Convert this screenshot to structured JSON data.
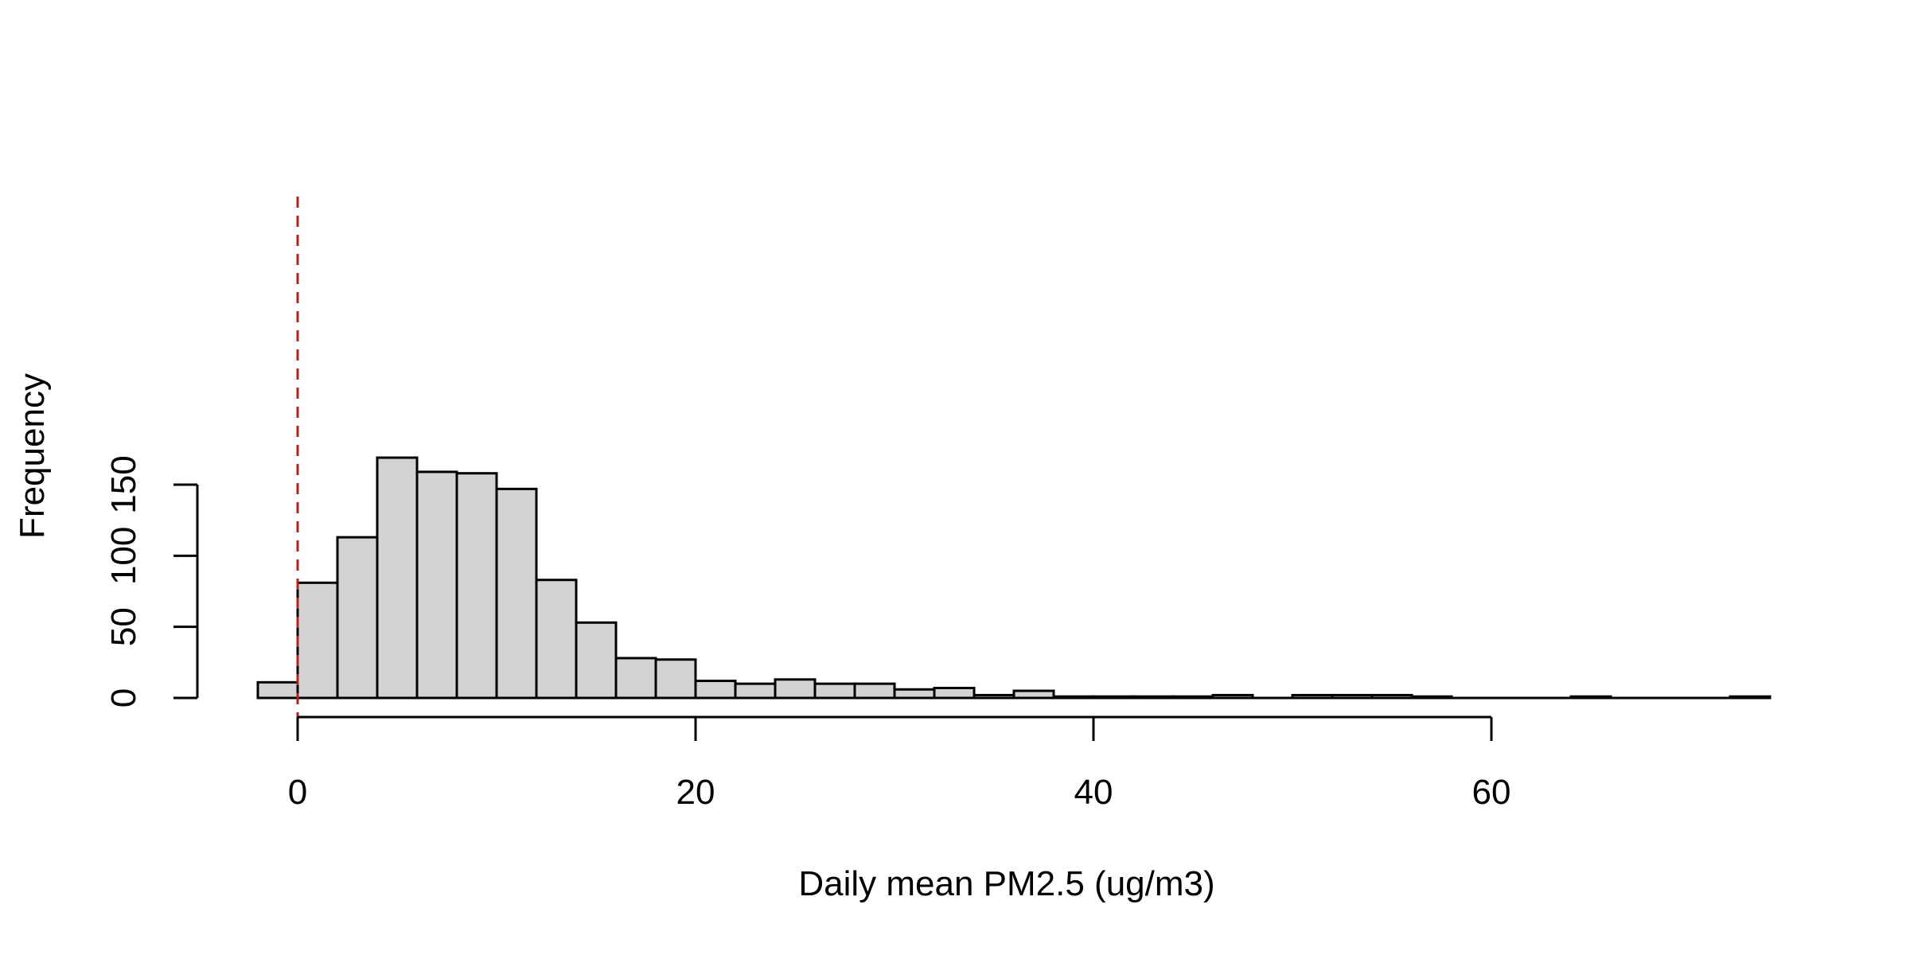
{
  "chart_data": {
    "type": "bar",
    "title": "",
    "xlabel": "Daily mean PM2.5 (ug/m3)",
    "ylabel": "Frequency",
    "xlim": [
      -7.5,
      75
    ],
    "ylim": [
      0,
      176
    ],
    "bin_width": 2,
    "bins": [
      {
        "x0": -2,
        "x1": 0,
        "count": 11
      },
      {
        "x0": 0,
        "x1": 2,
        "count": 81
      },
      {
        "x0": 2,
        "x1": 4,
        "count": 113
      },
      {
        "x0": 4,
        "x1": 6,
        "count": 169
      },
      {
        "x0": 6,
        "x1": 8,
        "count": 159
      },
      {
        "x0": 8,
        "x1": 10,
        "count": 158
      },
      {
        "x0": 10,
        "x1": 12,
        "count": 147
      },
      {
        "x0": 12,
        "x1": 14,
        "count": 83
      },
      {
        "x0": 14,
        "x1": 16,
        "count": 53
      },
      {
        "x0": 16,
        "x1": 18,
        "count": 28
      },
      {
        "x0": 18,
        "x1": 20,
        "count": 27
      },
      {
        "x0": 20,
        "x1": 22,
        "count": 12
      },
      {
        "x0": 22,
        "x1": 24,
        "count": 10
      },
      {
        "x0": 24,
        "x1": 26,
        "count": 13
      },
      {
        "x0": 26,
        "x1": 28,
        "count": 10
      },
      {
        "x0": 28,
        "x1": 30,
        "count": 10
      },
      {
        "x0": 30,
        "x1": 32,
        "count": 6
      },
      {
        "x0": 32,
        "x1": 34,
        "count": 7
      },
      {
        "x0": 34,
        "x1": 36,
        "count": 2
      },
      {
        "x0": 36,
        "x1": 38,
        "count": 5
      },
      {
        "x0": 38,
        "x1": 40,
        "count": 1
      },
      {
        "x0": 40,
        "x1": 42,
        "count": 1
      },
      {
        "x0": 42,
        "x1": 44,
        "count": 1
      },
      {
        "x0": 44,
        "x1": 46,
        "count": 1
      },
      {
        "x0": 46,
        "x1": 48,
        "count": 2
      },
      {
        "x0": 48,
        "x1": 50,
        "count": 0
      },
      {
        "x0": 50,
        "x1": 52,
        "count": 2
      },
      {
        "x0": 52,
        "x1": 54,
        "count": 2
      },
      {
        "x0": 54,
        "x1": 56,
        "count": 2
      },
      {
        "x0": 56,
        "x1": 58,
        "count": 1
      },
      {
        "x0": 58,
        "x1": 60,
        "count": 0
      },
      {
        "x0": 60,
        "x1": 62,
        "count": 0
      },
      {
        "x0": 62,
        "x1": 64,
        "count": 0
      },
      {
        "x0": 64,
        "x1": 66,
        "count": 1
      },
      {
        "x0": 66,
        "x1": 68,
        "count": 0
      },
      {
        "x0": 68,
        "x1": 70,
        "count": 0
      },
      {
        "x0": 70,
        "x1": 72,
        "count": 0
      },
      {
        "x0": 72,
        "x1": 74,
        "count": 1
      }
    ],
    "x_ticks": [
      0,
      20,
      40,
      60
    ],
    "x_axis_range": [
      0,
      60
    ],
    "y_ticks": [
      0,
      50,
      100,
      150
    ],
    "y_axis_range": [
      0,
      150
    ],
    "reference_line": {
      "x": 0,
      "style": "dashed",
      "color": "#B22222"
    },
    "bar_fill": "#D3D3D3",
    "bar_stroke": "#000000",
    "grid": false,
    "legend": "none"
  }
}
